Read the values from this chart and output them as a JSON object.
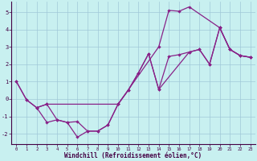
{
  "bg_color": "#c8f0f0",
  "line_color": "#882288",
  "grid_color": "#a0c8d8",
  "xlabel": "Windchill (Refroidissement éolien,°C)",
  "xlim": [
    -0.5,
    23.5
  ],
  "ylim": [
    -2.6,
    5.6
  ],
  "xticks": [
    0,
    1,
    2,
    3,
    4,
    5,
    6,
    7,
    8,
    9,
    10,
    11,
    12,
    13,
    14,
    15,
    16,
    17,
    18,
    19,
    20,
    21,
    22,
    23
  ],
  "yticks": [
    -2,
    -1,
    0,
    1,
    2,
    3,
    4,
    5
  ],
  "line1_x": [
    0,
    1,
    2,
    3,
    4,
    5,
    6,
    7,
    8,
    9,
    10,
    14,
    15,
    16,
    17,
    20,
    21,
    22,
    23
  ],
  "line1_y": [
    1.0,
    -0.05,
    -0.5,
    -1.35,
    -1.2,
    -1.35,
    -2.2,
    -1.85,
    -1.85,
    -1.5,
    -0.3,
    3.0,
    5.1,
    5.05,
    5.3,
    4.1,
    2.85,
    2.5,
    2.4
  ],
  "line2_x": [
    0,
    1,
    2,
    3,
    10,
    11,
    12,
    13,
    14,
    15,
    16,
    17,
    18,
    19,
    20,
    21,
    22,
    23
  ],
  "line2_y": [
    1.0,
    -0.05,
    -0.5,
    -0.3,
    -0.3,
    0.5,
    1.5,
    2.6,
    0.55,
    2.45,
    2.55,
    2.7,
    2.85,
    2.0,
    4.1,
    2.85,
    2.5,
    2.4
  ],
  "line3_x": [
    2,
    3,
    4,
    5,
    6,
    7,
    8,
    9,
    10,
    11,
    12,
    13,
    14,
    17,
    18,
    19,
    20,
    21,
    22,
    23
  ],
  "line3_y": [
    -0.5,
    -0.3,
    -1.2,
    -1.35,
    -1.3,
    -1.85,
    -1.85,
    -1.5,
    -0.3,
    0.5,
    1.5,
    2.6,
    0.55,
    2.7,
    2.85,
    2.0,
    4.1,
    2.85,
    2.5,
    2.4
  ]
}
